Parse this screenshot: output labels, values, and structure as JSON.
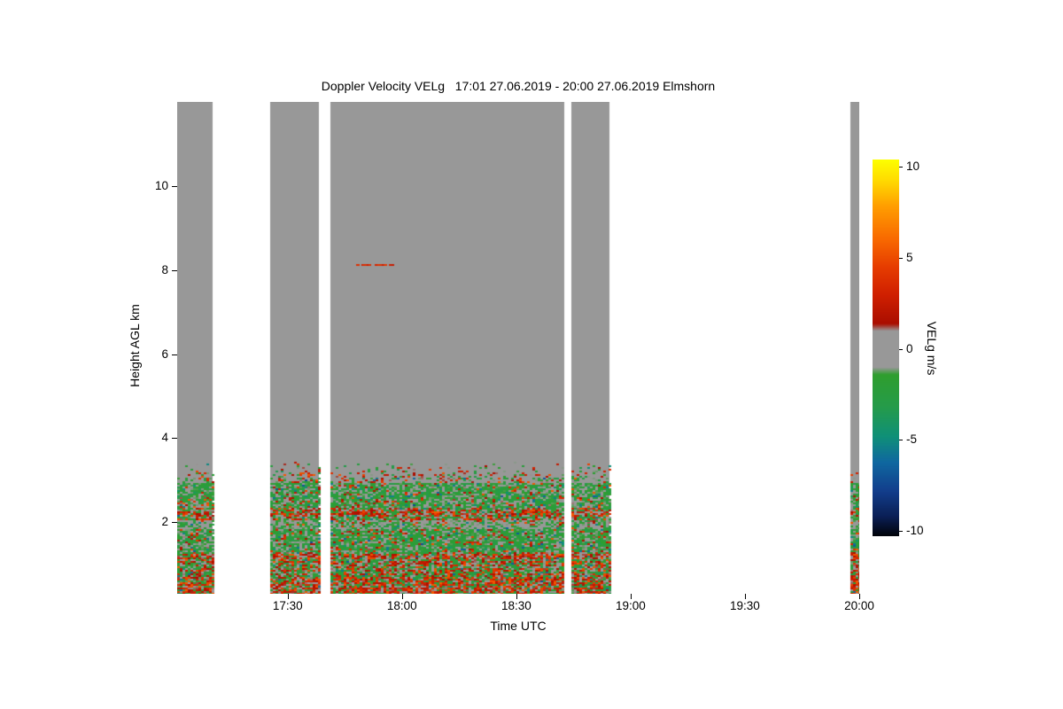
{
  "chart_data": {
    "type": "heatmap",
    "title": "Doppler Velocity VELg   17:01 27.06.2019 - 20:00 27.06.2019 Elmshorn",
    "quantity": "Doppler Velocity VELg",
    "time_start": "17:01 27.06.2019",
    "time_end": "20:00 27.06.2019",
    "station": "Elmshorn",
    "xlabel": "Time UTC",
    "ylabel": "Height AGL km",
    "x_ticks": [
      {
        "hour": 17.5,
        "label": "17:30"
      },
      {
        "hour": 18.0,
        "label": "18:00"
      },
      {
        "hour": 18.5,
        "label": "18:30"
      },
      {
        "hour": 19.0,
        "label": "19:00"
      },
      {
        "hour": 19.5,
        "label": "19:30"
      },
      {
        "hour": 20.0,
        "label": "20:00"
      }
    ],
    "x_range_hours": [
      17.0167,
      20.0
    ],
    "y_ticks": [
      2,
      4,
      6,
      8,
      10
    ],
    "y_range_km": [
      0.3,
      12.0
    ],
    "grid": false,
    "background_color": "#ffffff",
    "no_signal_color": "#989898",
    "coverage_segments_hours": [
      [
        17.0167,
        17.172
      ],
      [
        17.423,
        17.637
      ],
      [
        17.687,
        18.71
      ],
      [
        18.741,
        18.907
      ],
      [
        19.961,
        20.0
      ]
    ],
    "signal": {
      "description": "Boundary-layer returns below ~3.4 km AGL: mostly weak negative velocities (green) with positive (red/orange) streaks near the surface and around 2.2 km; gray speckle (~0 m/s) band near 1.9-2.0 km; sparse speckle fringe 2.95-3.45 km; no signal (gray) above.",
      "pos_vel_range": [
        0.9,
        5.6
      ],
      "neg_vel_range": [
        -3.4,
        -0.9
      ],
      "layers": [
        {
          "from_km": 0.3,
          "to_km": 0.75,
          "p_data": 1.0,
          "p_pos": 0.5,
          "p_zero": 0.03
        },
        {
          "from_km": 0.75,
          "to_km": 1.25,
          "p_data": 1.0,
          "p_pos": 0.38,
          "p_zero": 0.05
        },
        {
          "from_km": 1.25,
          "to_km": 1.85,
          "p_data": 1.0,
          "p_pos": 0.14,
          "p_zero": 0.08
        },
        {
          "from_km": 1.85,
          "to_km": 2.05,
          "p_data": 1.0,
          "p_pos": 0.12,
          "p_zero": 0.4
        },
        {
          "from_km": 2.05,
          "to_km": 2.35,
          "p_data": 1.0,
          "p_pos": 0.45,
          "p_zero": 0.06
        },
        {
          "from_km": 2.35,
          "to_km": 2.95,
          "p_data": 0.95,
          "p_pos": 0.1,
          "p_zero": 0.08
        },
        {
          "from_km": 2.95,
          "to_km": 3.45,
          "p_data": 0.5,
          "p_pos": 0.35,
          "p_zero": 0.05,
          "taper": true
        }
      ],
      "anomaly": {
        "km": 8.15,
        "from_hour": 17.78,
        "to_hour": 17.97,
        "velocity": 3.5
      }
    },
    "colorbar": {
      "label": "VELg m/s",
      "ticks": [
        10,
        5,
        0,
        -5,
        -10
      ],
      "range": [
        -10.3,
        10.4
      ],
      "stops": [
        [
          10.4,
          "#fdff00"
        ],
        [
          9.2,
          "#ffd800"
        ],
        [
          7.8,
          "#ff9c00"
        ],
        [
          6.0,
          "#f86800"
        ],
        [
          4.5,
          "#e63c00"
        ],
        [
          3.0,
          "#d02000"
        ],
        [
          1.4,
          "#aa0e00"
        ],
        [
          1.0,
          "#989898"
        ],
        [
          -1.0,
          "#989898"
        ],
        [
          -1.4,
          "#2f9e2e"
        ],
        [
          -3.2,
          "#259b4b"
        ],
        [
          -4.8,
          "#0f9078"
        ],
        [
          -6.2,
          "#0f68a0"
        ],
        [
          -7.8,
          "#123e8c"
        ],
        [
          -9.2,
          "#0a1f55"
        ],
        [
          -10.4,
          "#000000"
        ]
      ]
    }
  }
}
